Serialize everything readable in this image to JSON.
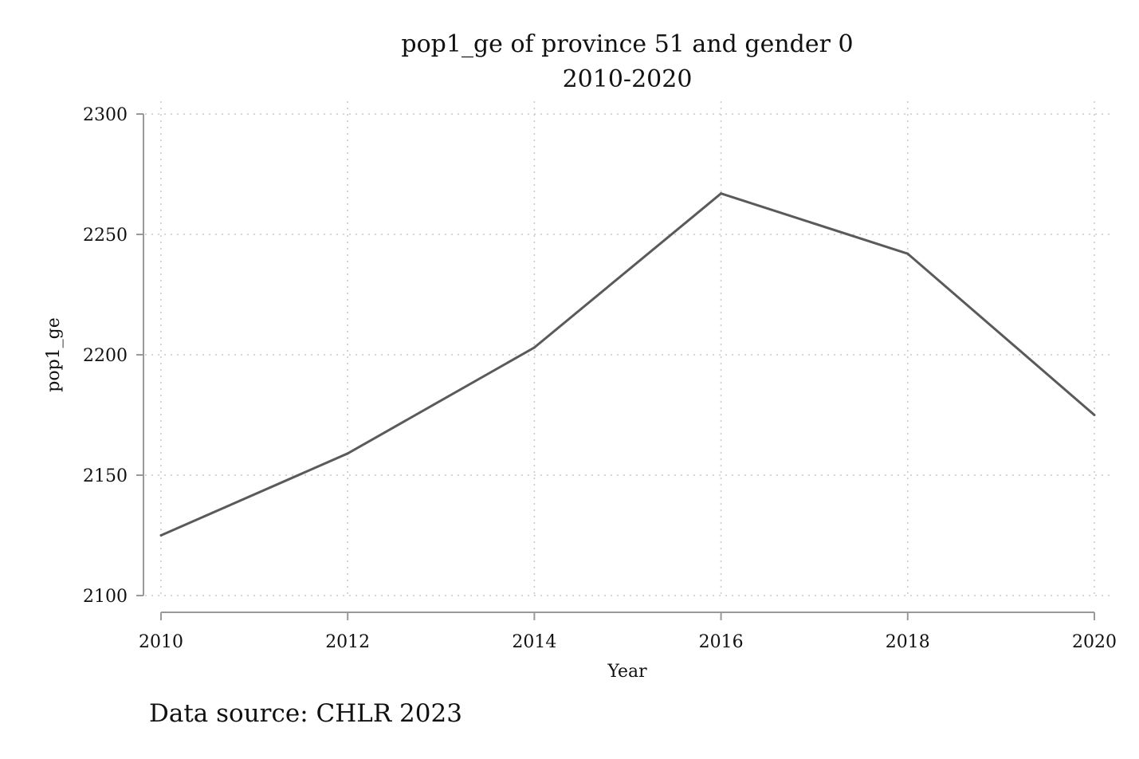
{
  "chart_data": {
    "type": "line",
    "title": "pop1_ge of province 51 and gender 0",
    "subtitle": "2010-2020",
    "xlabel": "Year",
    "ylabel": "pop1_ge",
    "x": [
      2010,
      2012,
      2014,
      2016,
      2018,
      2020
    ],
    "series": [
      {
        "values": [
          2125,
          2159,
          2203,
          2267,
          2242,
          2175
        ]
      }
    ],
    "xlim": [
      2010,
      2020
    ],
    "ylim": [
      2100,
      2300
    ],
    "xticks": [
      2010,
      2012,
      2014,
      2016,
      2018,
      2020
    ],
    "yticks": [
      2100,
      2150,
      2200,
      2250,
      2300
    ],
    "grid": true,
    "grid_style": "dotted",
    "line_color": "#5a5a5a",
    "axis_color": "#999999",
    "grid_color": "#c8c8c8",
    "note": "Data source: CHLR 2023"
  }
}
